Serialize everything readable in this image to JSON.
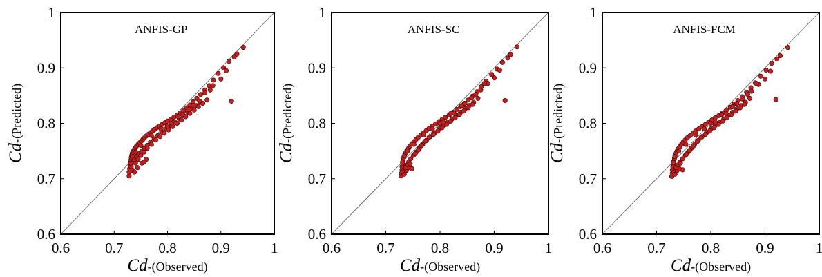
{
  "chart_data": [
    {
      "type": "scatter",
      "title": "ANFIS-GP",
      "xlabel_symbol": "Cd",
      "xlabel_text": "-(Observed)",
      "ylabel_symbol": "Cd",
      "ylabel_text": "-(Predicted)",
      "xlim": [
        0.6,
        1
      ],
      "ylim": [
        0.6,
        1
      ],
      "xticks": [
        "0.6",
        "0.7",
        "0.8",
        "0.9",
        "1"
      ],
      "yticks": [
        "0.6",
        "0.7",
        "0.8",
        "0.9",
        "1"
      ],
      "grid": false,
      "reference_line": "y=x",
      "marker_color": "#c81e1e",
      "marker_edge": "#3a0a0a",
      "points": [
        [
          0.728,
          0.705
        ],
        [
          0.728,
          0.712
        ],
        [
          0.729,
          0.718
        ],
        [
          0.73,
          0.723
        ],
        [
          0.73,
          0.728
        ],
        [
          0.731,
          0.733
        ],
        [
          0.732,
          0.738
        ],
        [
          0.733,
          0.742
        ],
        [
          0.734,
          0.746
        ],
        [
          0.736,
          0.75
        ],
        [
          0.738,
          0.753
        ],
        [
          0.74,
          0.756
        ],
        [
          0.742,
          0.759
        ],
        [
          0.745,
          0.762
        ],
        [
          0.748,
          0.765
        ],
        [
          0.751,
          0.768
        ],
        [
          0.754,
          0.771
        ],
        [
          0.757,
          0.774
        ],
        [
          0.76,
          0.777
        ],
        [
          0.764,
          0.78
        ],
        [
          0.768,
          0.783
        ],
        [
          0.772,
          0.786
        ],
        [
          0.776,
          0.789
        ],
        [
          0.78,
          0.792
        ],
        [
          0.785,
          0.795
        ],
        [
          0.79,
          0.798
        ],
        [
          0.795,
          0.801
        ],
        [
          0.8,
          0.804
        ],
        [
          0.806,
          0.807
        ],
        [
          0.812,
          0.811
        ],
        [
          0.818,
          0.815
        ],
        [
          0.824,
          0.819
        ],
        [
          0.83,
          0.823
        ],
        [
          0.836,
          0.828
        ],
        [
          0.842,
          0.833
        ],
        [
          0.848,
          0.839
        ],
        [
          0.855,
          0.845
        ],
        [
          0.862,
          0.852
        ],
        [
          0.87,
          0.86
        ],
        [
          0.878,
          0.868
        ],
        [
          0.886,
          0.878
        ],
        [
          0.895,
          0.89
        ],
        [
          0.905,
          0.9
        ],
        [
          0.915,
          0.912
        ],
        [
          0.925,
          0.92
        ],
        [
          0.93,
          0.925
        ],
        [
          0.942,
          0.937
        ],
        [
          0.732,
          0.722
        ],
        [
          0.735,
          0.73
        ],
        [
          0.738,
          0.735
        ],
        [
          0.742,
          0.74
        ],
        [
          0.747,
          0.745
        ],
        [
          0.752,
          0.75
        ],
        [
          0.757,
          0.755
        ],
        [
          0.762,
          0.76
        ],
        [
          0.768,
          0.766
        ],
        [
          0.775,
          0.772
        ],
        [
          0.782,
          0.778
        ],
        [
          0.79,
          0.784
        ],
        [
          0.798,
          0.79
        ],
        [
          0.806,
          0.796
        ],
        [
          0.814,
          0.802
        ],
        [
          0.822,
          0.808
        ],
        [
          0.83,
          0.814
        ],
        [
          0.838,
          0.82
        ],
        [
          0.846,
          0.826
        ],
        [
          0.854,
          0.832
        ],
        [
          0.862,
          0.838
        ],
        [
          0.735,
          0.715
        ],
        [
          0.74,
          0.728
        ],
        [
          0.745,
          0.735
        ],
        [
          0.75,
          0.742
        ],
        [
          0.756,
          0.748
        ],
        [
          0.762,
          0.755
        ],
        [
          0.77,
          0.762
        ],
        [
          0.778,
          0.77
        ],
        [
          0.786,
          0.776
        ],
        [
          0.794,
          0.782
        ],
        [
          0.802,
          0.788
        ],
        [
          0.81,
          0.794
        ],
        [
          0.818,
          0.8
        ],
        [
          0.826,
          0.806
        ],
        [
          0.834,
          0.812
        ],
        [
          0.842,
          0.818
        ],
        [
          0.85,
          0.824
        ],
        [
          0.858,
          0.83
        ],
        [
          0.866,
          0.836
        ],
        [
          0.874,
          0.842
        ],
        [
          0.738,
          0.712
        ],
        [
          0.744,
          0.72
        ],
        [
          0.752,
          0.728
        ],
        [
          0.76,
          0.735
        ],
        [
          0.756,
          0.73
        ],
        [
          0.8,
          0.795
        ],
        [
          0.82,
          0.812
        ],
        [
          0.84,
          0.825
        ],
        [
          0.86,
          0.84
        ],
        [
          0.88,
          0.86
        ],
        [
          0.9,
          0.88
        ],
        [
          0.91,
          0.895
        ],
        [
          0.92,
          0.84
        ],
        [
          0.885,
          0.868
        ],
        [
          0.87,
          0.855
        ],
        [
          0.848,
          0.832
        ],
        [
          0.828,
          0.816
        ],
        [
          0.808,
          0.8
        ],
        [
          0.788,
          0.79
        ],
        [
          0.77,
          0.778
        ],
        [
          0.75,
          0.76
        ],
        [
          0.74,
          0.748
        ],
        [
          0.734,
          0.74
        ],
        [
          0.731,
          0.728
        ]
      ]
    },
    {
      "type": "scatter",
      "title": "ANFIS-SC",
      "xlabel_symbol": "Cd",
      "xlabel_text": "-(Observed)",
      "ylabel_symbol": "Cd",
      "ylabel_text": "-(Predicted)",
      "xlim": [
        0.6,
        1
      ],
      "ylim": [
        0.6,
        1
      ],
      "xticks": [
        "0.6",
        "0.7",
        "0.8",
        "0.9",
        "1"
      ],
      "yticks": [
        "0.6",
        "0.7",
        "0.8",
        "0.9",
        "1"
      ],
      "grid": false,
      "reference_line": "y=x",
      "marker_color": "#c81e1e",
      "marker_edge": "#3a0a0a",
      "points": [
        [
          0.728,
          0.705
        ],
        [
          0.729,
          0.71
        ],
        [
          0.73,
          0.716
        ],
        [
          0.73,
          0.722
        ],
        [
          0.731,
          0.728
        ],
        [
          0.732,
          0.733
        ],
        [
          0.733,
          0.738
        ],
        [
          0.735,
          0.743
        ],
        [
          0.737,
          0.747
        ],
        [
          0.739,
          0.751
        ],
        [
          0.742,
          0.755
        ],
        [
          0.745,
          0.759
        ],
        [
          0.748,
          0.763
        ],
        [
          0.752,
          0.767
        ],
        [
          0.756,
          0.771
        ],
        [
          0.76,
          0.775
        ],
        [
          0.765,
          0.779
        ],
        [
          0.77,
          0.783
        ],
        [
          0.775,
          0.787
        ],
        [
          0.78,
          0.791
        ],
        [
          0.786,
          0.795
        ],
        [
          0.792,
          0.799
        ],
        [
          0.798,
          0.803
        ],
        [
          0.804,
          0.807
        ],
        [
          0.81,
          0.811
        ],
        [
          0.817,
          0.815
        ],
        [
          0.824,
          0.82
        ],
        [
          0.831,
          0.825
        ],
        [
          0.838,
          0.83
        ],
        [
          0.845,
          0.836
        ],
        [
          0.852,
          0.842
        ],
        [
          0.86,
          0.849
        ],
        [
          0.868,
          0.857
        ],
        [
          0.876,
          0.866
        ],
        [
          0.885,
          0.876
        ],
        [
          0.895,
          0.888
        ],
        [
          0.905,
          0.898
        ],
        [
          0.915,
          0.91
        ],
        [
          0.925,
          0.918
        ],
        [
          0.93,
          0.924
        ],
        [
          0.942,
          0.938
        ],
        [
          0.732,
          0.712
        ],
        [
          0.735,
          0.718
        ],
        [
          0.738,
          0.724
        ],
        [
          0.742,
          0.73
        ],
        [
          0.746,
          0.736
        ],
        [
          0.751,
          0.742
        ],
        [
          0.756,
          0.748
        ],
        [
          0.762,
          0.755
        ],
        [
          0.768,
          0.762
        ],
        [
          0.775,
          0.769
        ],
        [
          0.782,
          0.776
        ],
        [
          0.79,
          0.783
        ],
        [
          0.798,
          0.79
        ],
        [
          0.806,
          0.796
        ],
        [
          0.814,
          0.802
        ],
        [
          0.822,
          0.808
        ],
        [
          0.83,
          0.814
        ],
        [
          0.838,
          0.82
        ],
        [
          0.846,
          0.826
        ],
        [
          0.854,
          0.832
        ],
        [
          0.862,
          0.838
        ],
        [
          0.87,
          0.845
        ],
        [
          0.734,
          0.708
        ],
        [
          0.738,
          0.715
        ],
        [
          0.743,
          0.72
        ],
        [
          0.748,
          0.718
        ],
        [
          0.754,
          0.745
        ],
        [
          0.76,
          0.752
        ],
        [
          0.766,
          0.76
        ],
        [
          0.773,
          0.768
        ],
        [
          0.78,
          0.775
        ],
        [
          0.788,
          0.78
        ],
        [
          0.796,
          0.786
        ],
        [
          0.804,
          0.792
        ],
        [
          0.812,
          0.798
        ],
        [
          0.82,
          0.804
        ],
        [
          0.828,
          0.81
        ],
        [
          0.836,
          0.816
        ],
        [
          0.844,
          0.822
        ],
        [
          0.852,
          0.828
        ],
        [
          0.86,
          0.834
        ],
        [
          0.737,
          0.72
        ],
        [
          0.741,
          0.725
        ],
        [
          0.745,
          0.727
        ],
        [
          0.8,
          0.8
        ],
        [
          0.82,
          0.818
        ],
        [
          0.84,
          0.832
        ],
        [
          0.858,
          0.846
        ],
        [
          0.875,
          0.86
        ],
        [
          0.888,
          0.872
        ],
        [
          0.9,
          0.882
        ],
        [
          0.91,
          0.896
        ],
        [
          0.92,
          0.841
        ],
        [
          0.882,
          0.872
        ],
        [
          0.866,
          0.852
        ],
        [
          0.846,
          0.836
        ],
        [
          0.826,
          0.818
        ],
        [
          0.806,
          0.802
        ],
        [
          0.786,
          0.79
        ],
        [
          0.77,
          0.779
        ],
        [
          0.752,
          0.762
        ],
        [
          0.74,
          0.75
        ],
        [
          0.734,
          0.741
        ],
        [
          0.731,
          0.73
        ]
      ]
    },
    {
      "type": "scatter",
      "title": "ANFIS-FCM",
      "xlabel_symbol": "Cd",
      "xlabel_text": "-(Observed)",
      "ylabel_symbol": "Cd",
      "ylabel_text": "-(Predicted)",
      "xlim": [
        0.6,
        1
      ],
      "ylim": [
        0.6,
        1
      ],
      "xticks": [
        "0.6",
        "0.7",
        "0.8",
        "0.9",
        "1"
      ],
      "yticks": [
        "0.6",
        "0.7",
        "0.8",
        "0.9",
        "1"
      ],
      "grid": false,
      "reference_line": "y=x",
      "marker_color": "#c81e1e",
      "marker_edge": "#3a0a0a",
      "points": [
        [
          0.728,
          0.704
        ],
        [
          0.729,
          0.71
        ],
        [
          0.729,
          0.716
        ],
        [
          0.73,
          0.722
        ],
        [
          0.731,
          0.727
        ],
        [
          0.732,
          0.732
        ],
        [
          0.733,
          0.737
        ],
        [
          0.734,
          0.742
        ],
        [
          0.736,
          0.746
        ],
        [
          0.738,
          0.75
        ],
        [
          0.74,
          0.754
        ],
        [
          0.743,
          0.758
        ],
        [
          0.746,
          0.762
        ],
        [
          0.749,
          0.766
        ],
        [
          0.753,
          0.77
        ],
        [
          0.757,
          0.774
        ],
        [
          0.762,
          0.778
        ],
        [
          0.767,
          0.782
        ],
        [
          0.772,
          0.786
        ],
        [
          0.778,
          0.79
        ],
        [
          0.784,
          0.794
        ],
        [
          0.79,
          0.798
        ],
        [
          0.796,
          0.802
        ],
        [
          0.802,
          0.806
        ],
        [
          0.808,
          0.81
        ],
        [
          0.815,
          0.814
        ],
        [
          0.822,
          0.819
        ],
        [
          0.829,
          0.824
        ],
        [
          0.836,
          0.829
        ],
        [
          0.843,
          0.835
        ],
        [
          0.85,
          0.841
        ],
        [
          0.858,
          0.848
        ],
        [
          0.866,
          0.856
        ],
        [
          0.874,
          0.864
        ],
        [
          0.882,
          0.873
        ],
        [
          0.892,
          0.885
        ],
        [
          0.902,
          0.896
        ],
        [
          0.912,
          0.908
        ],
        [
          0.922,
          0.916
        ],
        [
          0.928,
          0.922
        ],
        [
          0.942,
          0.937
        ],
        [
          0.732,
          0.712
        ],
        [
          0.735,
          0.718
        ],
        [
          0.739,
          0.724
        ],
        [
          0.743,
          0.73
        ],
        [
          0.748,
          0.736
        ],
        [
          0.753,
          0.742
        ],
        [
          0.758,
          0.748
        ],
        [
          0.764,
          0.755
        ],
        [
          0.77,
          0.762
        ],
        [
          0.777,
          0.769
        ],
        [
          0.784,
          0.776
        ],
        [
          0.792,
          0.783
        ],
        [
          0.8,
          0.79
        ],
        [
          0.808,
          0.796
        ],
        [
          0.816,
          0.802
        ],
        [
          0.824,
          0.808
        ],
        [
          0.832,
          0.814
        ],
        [
          0.84,
          0.82
        ],
        [
          0.848,
          0.826
        ],
        [
          0.856,
          0.832
        ],
        [
          0.864,
          0.838
        ],
        [
          0.872,
          0.845
        ],
        [
          0.734,
          0.708
        ],
        [
          0.738,
          0.715
        ],
        [
          0.742,
          0.718
        ],
        [
          0.748,
          0.716
        ],
        [
          0.755,
          0.744
        ],
        [
          0.761,
          0.751
        ],
        [
          0.768,
          0.759
        ],
        [
          0.775,
          0.767
        ],
        [
          0.782,
          0.774
        ],
        [
          0.79,
          0.78
        ],
        [
          0.798,
          0.786
        ],
        [
          0.806,
          0.792
        ],
        [
          0.814,
          0.798
        ],
        [
          0.822,
          0.804
        ],
        [
          0.83,
          0.81
        ],
        [
          0.838,
          0.816
        ],
        [
          0.846,
          0.822
        ],
        [
          0.854,
          0.828
        ],
        [
          0.862,
          0.834
        ],
        [
          0.736,
          0.72
        ],
        [
          0.74,
          0.725
        ],
        [
          0.744,
          0.728
        ],
        [
          0.8,
          0.8
        ],
        [
          0.82,
          0.816
        ],
        [
          0.84,
          0.83
        ],
        [
          0.858,
          0.844
        ],
        [
          0.875,
          0.858
        ],
        [
          0.888,
          0.87
        ],
        [
          0.9,
          0.88
        ],
        [
          0.91,
          0.894
        ],
        [
          0.92,
          0.843
        ],
        [
          0.884,
          0.872
        ],
        [
          0.868,
          0.852
        ],
        [
          0.848,
          0.836
        ],
        [
          0.828,
          0.818
        ],
        [
          0.808,
          0.802
        ],
        [
          0.788,
          0.79
        ],
        [
          0.772,
          0.779
        ],
        [
          0.754,
          0.762
        ],
        [
          0.741,
          0.75
        ],
        [
          0.734,
          0.74
        ],
        [
          0.731,
          0.729
        ]
      ]
    }
  ]
}
